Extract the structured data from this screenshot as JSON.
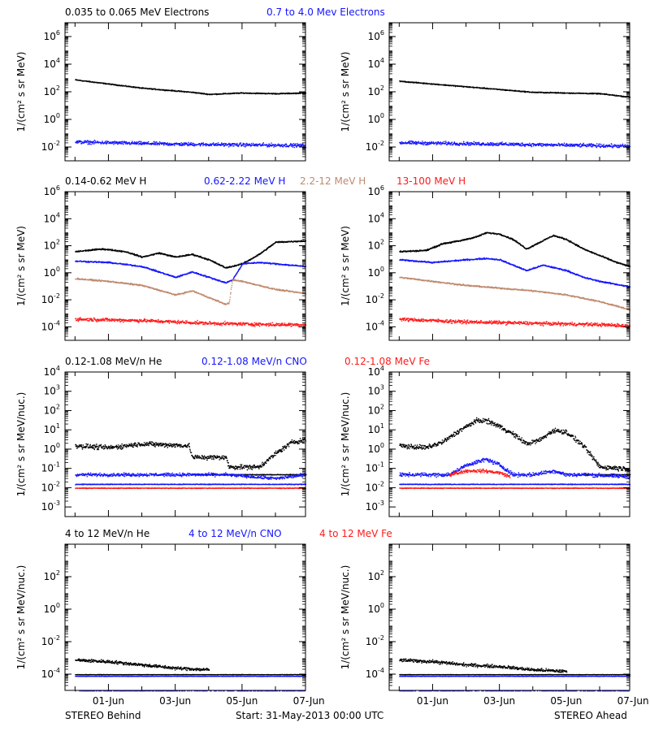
{
  "colors": {
    "black": "#000000",
    "blue": "#1515ff",
    "tan": "#c08a6e",
    "red": "#ff1a1a"
  },
  "footer": {
    "left": "STEREO Behind",
    "center": "Start: 31-May-2013 00:00 UTC",
    "right": "STEREO Ahead"
  },
  "x_axis": {
    "unit": "days since start",
    "range": [
      -0.3,
      6.9
    ],
    "ticks": [
      {
        "x": 1,
        "label": "01-Jun"
      },
      {
        "x": 3,
        "label": "03-Jun"
      },
      {
        "x": 5,
        "label": "05-Jun"
      },
      {
        "x": 7,
        "label": "07-Jun"
      }
    ]
  },
  "chart_data": [
    {
      "type": "scatter",
      "row": "electrons",
      "legend": [
        {
          "text": "0.035 to 0.065 MeV Electrons",
          "color": "black"
        },
        {
          "text": "0.7 to 4.0 Mev Electrons",
          "color": "blue"
        }
      ],
      "ylabel": "1/(cm² s sr MeV)",
      "yscale": "log",
      "ylim_exp": [
        -3,
        7
      ],
      "ytick_exps": [
        -2,
        0,
        2,
        4,
        6
      ],
      "panels": [
        {
          "name": "behind",
          "series": [
            {
              "color": "black",
              "x": [
                0,
                1,
                2,
                3,
                3.5,
                4,
                5,
                6,
                6.9
              ],
              "log": [
                2.9,
                2.6,
                2.3,
                2.1,
                2.0,
                1.85,
                1.95,
                1.9,
                1.95
              ],
              "noise": 0.04
            },
            {
              "color": "blue",
              "x": [
                0,
                3,
                6.9
              ],
              "log": [
                -1.6,
                -1.75,
                -1.85
              ],
              "noise": 0.15
            }
          ]
        },
        {
          "name": "ahead",
          "series": [
            {
              "color": "black",
              "x": [
                0,
                1,
                2,
                3,
                4,
                5,
                6,
                6.9
              ],
              "log": [
                2.8,
                2.6,
                2.4,
                2.2,
                2.0,
                1.95,
                1.9,
                1.65
              ],
              "noise": 0.04
            },
            {
              "color": "blue",
              "x": [
                0,
                3,
                6.9
              ],
              "log": [
                -1.65,
                -1.75,
                -1.9
              ],
              "noise": 0.15
            }
          ]
        }
      ]
    },
    {
      "type": "scatter",
      "row": "protons",
      "legend": [
        {
          "text": "0.14-0.62 MeV H",
          "color": "black"
        },
        {
          "text": "0.62-2.22 MeV H",
          "color": "blue"
        },
        {
          "text": "2.2-12 MeV H",
          "color": "tan"
        },
        {
          "text": "13-100 MeV H",
          "color": "red"
        }
      ],
      "ylabel": "1/(cm² s sr MeV)",
      "yscale": "log",
      "ylim_exp": [
        -5,
        6
      ],
      "ytick_exps": [
        -4,
        -2,
        0,
        2,
        4,
        6
      ],
      "panels": [
        {
          "name": "behind",
          "series": [
            {
              "color": "black",
              "x": [
                0,
                0.8,
                1.5,
                2,
                2.5,
                3,
                3.5,
                4,
                4.5,
                5,
                5.5,
                6,
                6.9
              ],
              "log": [
                1.6,
                1.8,
                1.6,
                1.2,
                1.5,
                1.2,
                1.4,
                1.0,
                0.4,
                0.7,
                1.4,
                2.3,
                2.4
              ],
              "noise": 0.06
            },
            {
              "color": "blue",
              "x": [
                0,
                1,
                2,
                3,
                3.5,
                4.5,
                4.7,
                5.0,
                5.5,
                6,
                6.9
              ],
              "log": [
                0.9,
                0.8,
                0.5,
                -0.3,
                0.1,
                -0.7,
                -0.5,
                0.7,
                0.8,
                0.7,
                0.5
              ],
              "noise": 0.06
            },
            {
              "color": "tan",
              "x": [
                0,
                1,
                2,
                3,
                3.5,
                4.5,
                4.6,
                4.7,
                5.0,
                6,
                6.9
              ],
              "log": [
                -0.4,
                -0.6,
                -0.9,
                -1.6,
                -1.3,
                -2.3,
                -2.2,
                -0.5,
                -0.6,
                -1.2,
                -1.5
              ],
              "noise": 0.06
            },
            {
              "color": "red",
              "x": [
                0,
                2,
                4,
                6,
                6.9
              ],
              "log": [
                -3.4,
                -3.5,
                -3.7,
                -3.8,
                -3.8
              ],
              "noise": 0.15
            }
          ]
        },
        {
          "name": "ahead",
          "series": [
            {
              "color": "black",
              "x": [
                0,
                0.8,
                1.3,
                1.8,
                2.3,
                2.6,
                3.0,
                3.4,
                3.8,
                4.2,
                4.6,
                5.0,
                5.5,
                6.0,
                6.5,
                6.9
              ],
              "log": [
                1.6,
                1.7,
                2.2,
                2.4,
                2.7,
                3.0,
                2.9,
                2.5,
                1.8,
                2.3,
                2.8,
                2.5,
                1.8,
                1.3,
                0.8,
                0.5
              ],
              "noise": 0.06
            },
            {
              "color": "blue",
              "x": [
                0,
                1,
                2,
                2.6,
                3.0,
                3.8,
                4.3,
                5.0,
                5.5,
                6,
                6.9
              ],
              "log": [
                1.0,
                0.8,
                1.0,
                1.1,
                1.0,
                0.2,
                0.6,
                0.2,
                -0.3,
                -0.6,
                -1.0
              ],
              "noise": 0.06
            },
            {
              "color": "tan",
              "x": [
                0,
                1,
                2,
                3,
                4,
                5,
                6,
                6.9
              ],
              "log": [
                -0.3,
                -0.6,
                -0.9,
                -1.1,
                -1.3,
                -1.6,
                -2.1,
                -2.7
              ],
              "noise": 0.06
            },
            {
              "color": "red",
              "x": [
                0,
                2,
                4,
                6,
                6.9
              ],
              "log": [
                -3.4,
                -3.6,
                -3.7,
                -3.8,
                -3.9
              ],
              "noise": 0.15
            }
          ]
        }
      ]
    },
    {
      "type": "scatter",
      "row": "heavy-low",
      "legend": [
        {
          "text": "0.12-1.08 MeV/n He",
          "color": "black"
        },
        {
          "text": "0.12-1.08 MeV/n CNO",
          "color": "blue"
        },
        {
          "text": "0.12-1.08 MeV Fe",
          "color": "red"
        }
      ],
      "ylabel": "1/(cm² s sr MeV/nuc.)",
      "yscale": "log",
      "ylim_exp": [
        -3.5,
        4
      ],
      "ytick_exps": [
        -3,
        -2,
        -1,
        0,
        1,
        2,
        3,
        4
      ],
      "panels": [
        {
          "name": "behind",
          "series": [
            {
              "color": "black",
              "x": [
                0,
                1,
                2,
                3.4,
                3.5,
                4.5,
                4.6,
                5.5,
                6.0,
                6.5,
                6.9
              ],
              "log": [
                0.2,
                0.1,
                0.3,
                0.2,
                -0.4,
                -0.4,
                -0.9,
                -0.9,
                -0.2,
                0.4,
                0.5
              ],
              "noise": 0.15
            },
            {
              "color": "black",
              "x": [
                3.5,
                6.9
              ],
              "log": [
                -1.3,
                -1.3
              ],
              "noise": 0.02
            },
            {
              "color": "blue",
              "x": [
                0,
                3.4,
                4.5,
                6.0,
                6.9
              ],
              "log": [
                -1.3,
                -1.3,
                -1.3,
                -1.5,
                -1.3
              ],
              "noise": 0.1
            },
            {
              "color": "blue",
              "x": [
                0,
                6.9
              ],
              "log": [
                -1.8,
                -1.8
              ],
              "noise": 0.02
            },
            {
              "color": "red",
              "x": [
                0,
                6.9
              ],
              "log": [
                -2.0,
                -2.0
              ],
              "noise": 0.02
            }
          ]
        },
        {
          "name": "ahead",
          "series": [
            {
              "color": "black",
              "x": [
                0,
                0.8,
                1.3,
                1.8,
                2.3,
                2.6,
                3.0,
                3.4,
                3.8,
                4.2,
                4.6,
                5.0,
                5.5,
                6.0,
                6.9
              ],
              "log": [
                0.2,
                0.1,
                0.4,
                1.0,
                1.5,
                1.5,
                1.2,
                0.8,
                0.3,
                0.5,
                1.0,
                0.9,
                0.2,
                -0.9,
                -1.0
              ],
              "noise": 0.15
            },
            {
              "color": "black",
              "x": [
                5.5,
                6.9
              ],
              "log": [
                -1.3,
                -1.3
              ],
              "noise": 0.02
            },
            {
              "color": "blue",
              "x": [
                0,
                1.5,
                2.0,
                2.6,
                3.0,
                3.4,
                4.0,
                4.6,
                5.0,
                5.5,
                6.9
              ],
              "log": [
                -1.3,
                -1.3,
                -0.8,
                -0.5,
                -0.8,
                -1.3,
                -1.3,
                -1.1,
                -1.3,
                -1.3,
                -1.4
              ],
              "noise": 0.12
            },
            {
              "color": "blue",
              "x": [
                0,
                6.9
              ],
              "log": [
                -1.8,
                -1.8
              ],
              "noise": 0.02
            },
            {
              "color": "red",
              "x": [
                1.5,
                2.0,
                2.5,
                3.0,
                3.3
              ],
              "log": [
                -1.3,
                -1.1,
                -1.1,
                -1.2,
                -1.4
              ],
              "noise": 0.1
            },
            {
              "color": "red",
              "x": [
                0,
                6.9
              ],
              "log": [
                -2.0,
                -2.0
              ],
              "noise": 0.02
            }
          ]
        }
      ]
    },
    {
      "type": "scatter",
      "row": "heavy-high",
      "legend": [
        {
          "text": "4 to 12 MeV/n He",
          "color": "black"
        },
        {
          "text": "4 to 12 MeV/n CNO",
          "color": "blue"
        },
        {
          "text": "4 to 12 MeV Fe",
          "color": "red"
        }
      ],
      "ylabel": "1/(cm² s sr MeV/nuc.)",
      "yscale": "log",
      "ylim_exp": [
        -5,
        4
      ],
      "ytick_exps": [
        -4,
        -2,
        0,
        2
      ],
      "panels": [
        {
          "name": "behind",
          "series": [
            {
              "color": "black",
              "x": [
                0,
                1,
                2,
                3,
                4
              ],
              "log": [
                -3.1,
                -3.2,
                -3.4,
                -3.6,
                -3.7
              ],
              "noise": 0.12
            },
            {
              "color": "black",
              "x": [
                0,
                6.9
              ],
              "log": [
                -4.0,
                -4.0
              ],
              "noise": 0.01
            },
            {
              "color": "blue",
              "x": [
                0,
                6.9
              ],
              "log": [
                -4.1,
                -4.1
              ],
              "noise": 0.01
            },
            {
              "color": "blue",
              "x": [
                0,
                6.9
              ],
              "log": [
                -5.0,
                -5.0
              ],
              "noise": 0.01
            }
          ]
        },
        {
          "name": "ahead",
          "series": [
            {
              "color": "black",
              "x": [
                0,
                1,
                2,
                3,
                4,
                5
              ],
              "log": [
                -3.1,
                -3.2,
                -3.4,
                -3.5,
                -3.7,
                -3.8
              ],
              "noise": 0.12
            },
            {
              "color": "black",
              "x": [
                0,
                6.9
              ],
              "log": [
                -4.0,
                -4.0
              ],
              "noise": 0.01
            },
            {
              "color": "blue",
              "x": [
                0,
                6.9
              ],
              "log": [
                -4.1,
                -4.1
              ],
              "noise": 0.01
            },
            {
              "color": "blue",
              "x": [
                0,
                6.9
              ],
              "log": [
                -5.0,
                -5.0
              ],
              "noise": 0.01
            }
          ]
        }
      ]
    }
  ]
}
